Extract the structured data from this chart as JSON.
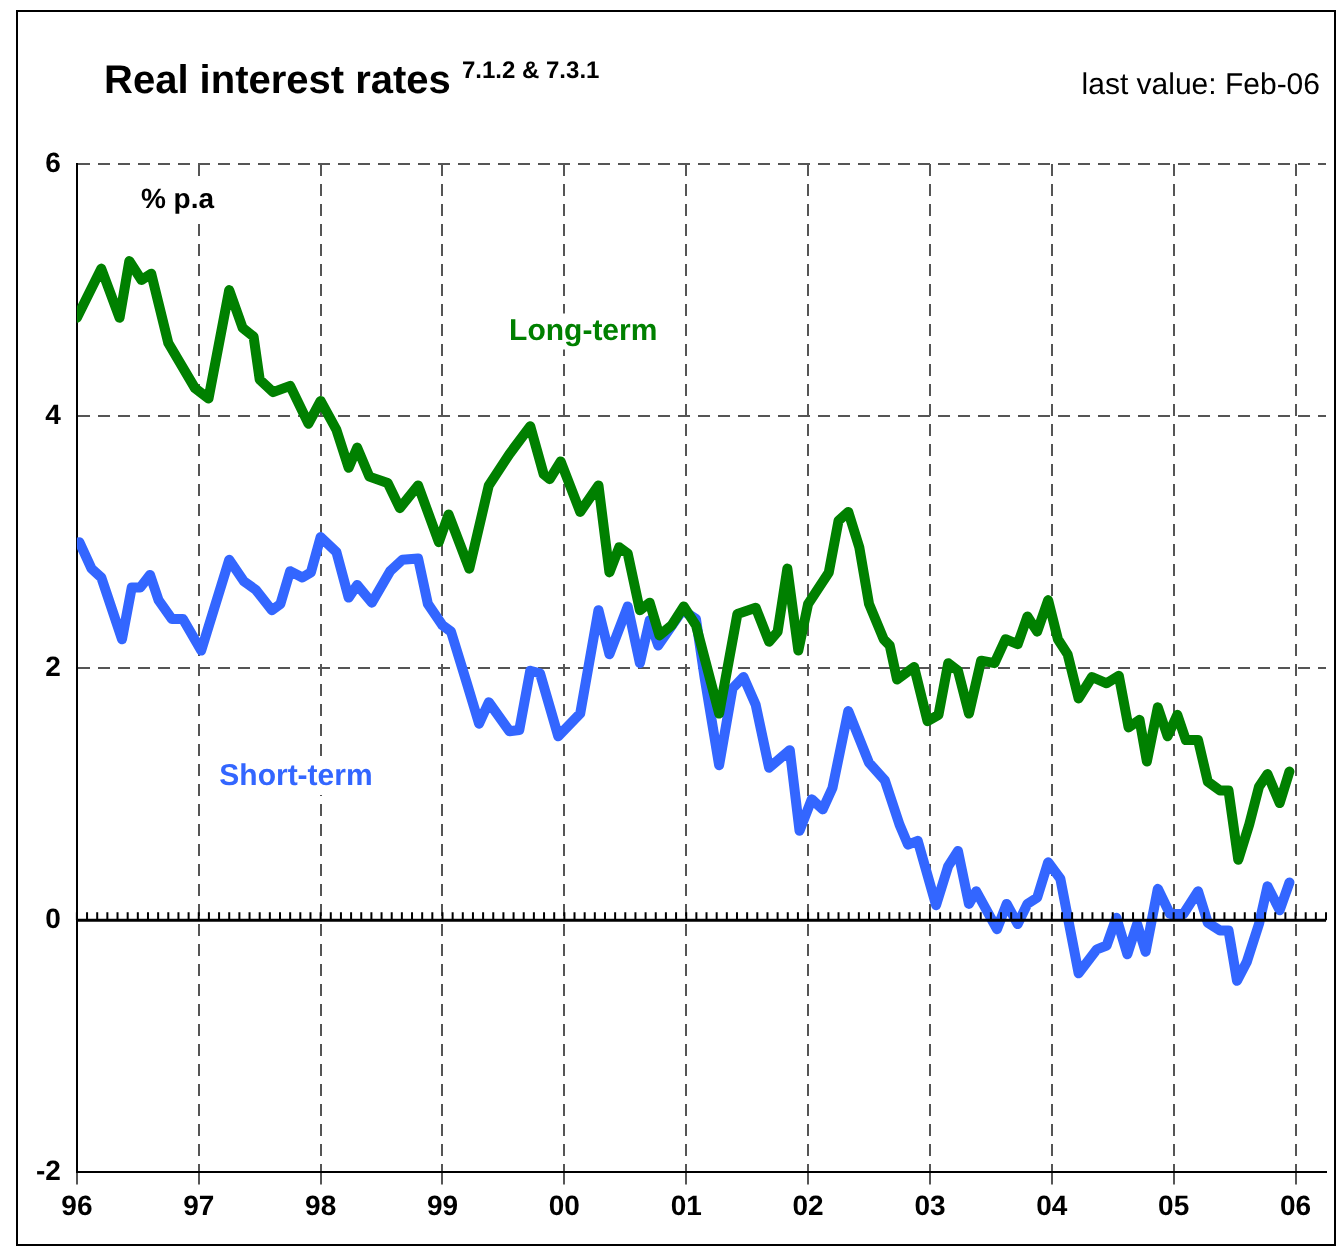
{
  "chart_data": {
    "type": "line",
    "title": "Real interest rates $^{7.1.2 & 7.3.1}$",
    "subtitle": "last value: Feb-06",
    "ylabel": "% p.a",
    "xlim": [
      1996,
      2006.25
    ],
    "xticks": [
      {
        "value": 1996,
        "label": "96"
      },
      {
        "value": 1997,
        "label": "97"
      },
      {
        "value": 1998,
        "label": "98"
      },
      {
        "value": 1999,
        "label": "99"
      },
      {
        "value": 2000,
        "label": "00"
      },
      {
        "value": 2001,
        "label": "01"
      },
      {
        "value": 2002,
        "label": "02"
      },
      {
        "value": 2003,
        "label": "03"
      },
      {
        "value": 2004,
        "label": "04"
      },
      {
        "value": 2005,
        "label": "05"
      },
      {
        "value": 2006,
        "label": "06"
      }
    ],
    "ylim": [
      -2,
      6
    ],
    "yticks": [
      -2,
      0,
      2,
      4,
      6
    ],
    "grid": true,
    "legend": false,
    "marker": "none",
    "line_style": "solid",
    "ref_lines": [
      {
        "axis": "y",
        "value": 0,
        "color": "#000000",
        "line_style": "solid"
      }
    ],
    "series": [
      {
        "name": "Long-term",
        "color": "#008000",
        "x": [
          1996.0,
          1996.2,
          1996.35,
          1996.43,
          1996.53,
          1996.61,
          1996.75,
          1996.97,
          1997.08,
          1997.25,
          1997.36,
          1997.45,
          1997.5,
          1997.61,
          1997.75,
          1997.9,
          1998.0,
          1998.13,
          1998.23,
          1998.3,
          1998.4,
          1998.55,
          1998.65,
          1998.8,
          1998.97,
          1999.05,
          1999.22,
          1999.38,
          1999.55,
          1999.72,
          1999.83,
          1999.88,
          1999.97,
          2000.13,
          2000.28,
          2000.37,
          2000.45,
          2000.52,
          2000.62,
          2000.7,
          2000.78,
          2000.88,
          2000.98,
          2001.08,
          2001.27,
          2001.42,
          2001.57,
          2001.68,
          2001.75,
          2001.83,
          2001.92,
          2002.0,
          2002.17,
          2002.25,
          2002.33,
          2002.42,
          2002.5,
          2002.62,
          2002.67,
          2002.73,
          2002.87,
          2002.98,
          2003.07,
          2003.15,
          2003.23,
          2003.32,
          2003.42,
          2003.53,
          2003.62,
          2003.72,
          2003.8,
          2003.88,
          2003.97,
          2004.05,
          2004.13,
          2004.22,
          2004.33,
          2004.45,
          2004.55,
          2004.63,
          2004.72,
          2004.78,
          2004.87,
          2004.95,
          2005.03,
          2005.1,
          2005.2,
          2005.28,
          2005.38,
          2005.45,
          2005.53,
          2005.62,
          2005.7,
          2005.77,
          2005.87,
          2005.95
        ],
        "values": [
          4.78,
          5.17,
          4.78,
          5.23,
          5.08,
          5.13,
          4.58,
          4.22,
          4.14,
          5.0,
          4.7,
          4.63,
          4.29,
          4.19,
          4.24,
          3.94,
          4.12,
          3.89,
          3.59,
          3.75,
          3.52,
          3.47,
          3.27,
          3.45,
          3.0,
          3.22,
          2.79,
          3.45,
          3.7,
          3.92,
          3.54,
          3.5,
          3.64,
          3.24,
          3.45,
          2.76,
          2.96,
          2.91,
          2.46,
          2.52,
          2.26,
          2.34,
          2.49,
          2.34,
          1.64,
          2.43,
          2.48,
          2.21,
          2.29,
          2.79,
          2.14,
          2.51,
          2.76,
          3.17,
          3.24,
          2.96,
          2.51,
          2.23,
          2.18,
          1.91,
          2.01,
          1.58,
          1.63,
          2.04,
          1.98,
          1.64,
          2.06,
          2.04,
          2.23,
          2.19,
          2.41,
          2.29,
          2.54,
          2.23,
          2.11,
          1.76,
          1.93,
          1.88,
          1.94,
          1.53,
          1.59,
          1.26,
          1.69,
          1.46,
          1.63,
          1.43,
          1.43,
          1.1,
          1.03,
          1.03,
          0.48,
          0.76,
          1.06,
          1.16,
          0.93,
          1.18
        ]
      },
      {
        "name": "Short-term",
        "color": "#3366ff",
        "x": [
          1996.02,
          1996.12,
          1996.2,
          1996.37,
          1996.45,
          1996.52,
          1996.6,
          1996.67,
          1996.78,
          1996.87,
          1997.02,
          1997.25,
          1997.37,
          1997.47,
          1997.6,
          1997.67,
          1997.75,
          1997.85,
          1997.92,
          1998.0,
          1998.13,
          1998.23,
          1998.3,
          1998.42,
          1998.57,
          1998.67,
          1998.8,
          1998.88,
          1999.0,
          1999.07,
          1999.2,
          1999.3,
          1999.38,
          1999.55,
          1999.63,
          1999.72,
          1999.8,
          1999.95,
          2000.13,
          2000.28,
          2000.37,
          2000.52,
          2000.62,
          2000.7,
          2000.77,
          2000.97,
          2001.08,
          2001.15,
          2001.27,
          2001.38,
          2001.47,
          2001.57,
          2001.68,
          2001.85,
          2001.93,
          2002.03,
          2002.12,
          2002.2,
          2002.33,
          2002.5,
          2002.63,
          2002.75,
          2002.82,
          2002.9,
          2003.05,
          2003.15,
          2003.23,
          2003.32,
          2003.38,
          2003.55,
          2003.63,
          2003.72,
          2003.8,
          2003.88,
          2003.97,
          2004.07,
          2004.22,
          2004.37,
          2004.45,
          2004.53,
          2004.62,
          2004.7,
          2004.77,
          2004.87,
          2004.97,
          2005.08,
          2005.2,
          2005.28,
          2005.38,
          2005.45,
          2005.52,
          2005.6,
          2005.7,
          2005.77,
          2005.87,
          2005.95
        ],
        "values": [
          3.0,
          2.79,
          2.72,
          2.23,
          2.64,
          2.64,
          2.74,
          2.54,
          2.39,
          2.39,
          2.14,
          2.86,
          2.69,
          2.62,
          2.46,
          2.51,
          2.77,
          2.72,
          2.76,
          3.04,
          2.92,
          2.56,
          2.66,
          2.52,
          2.77,
          2.86,
          2.87,
          2.51,
          2.34,
          2.29,
          1.88,
          1.56,
          1.73,
          1.5,
          1.51,
          1.98,
          1.96,
          1.46,
          1.64,
          2.46,
          2.11,
          2.49,
          2.04,
          2.38,
          2.18,
          2.46,
          2.39,
          1.93,
          1.23,
          1.84,
          1.93,
          1.71,
          1.21,
          1.35,
          0.71,
          0.96,
          0.88,
          1.05,
          1.66,
          1.25,
          1.11,
          0.76,
          0.6,
          0.63,
          0.12,
          0.43,
          0.55,
          0.13,
          0.23,
          -0.07,
          0.13,
          -0.03,
          0.13,
          0.18,
          0.46,
          0.33,
          -0.42,
          -0.23,
          -0.2,
          0.02,
          -0.27,
          -0.03,
          -0.25,
          0.25,
          0.05,
          0.05,
          0.23,
          -0.02,
          -0.08,
          -0.08,
          -0.48,
          -0.33,
          -0.03,
          0.27,
          0.08,
          0.3
        ]
      }
    ]
  }
}
